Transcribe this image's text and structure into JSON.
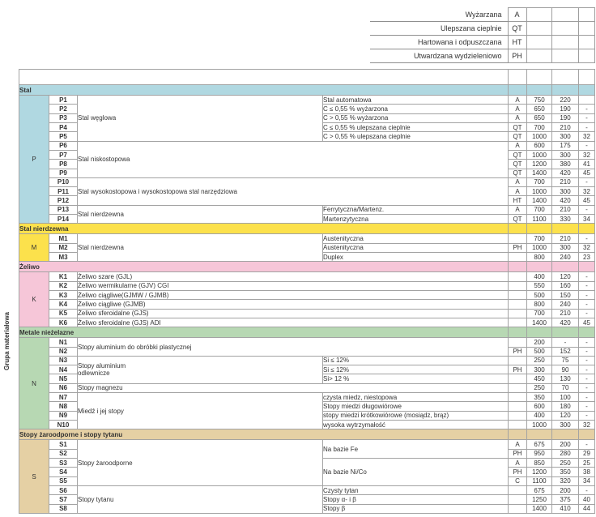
{
  "axis_label": "Grupa materiałowa",
  "legend": {
    "rows": [
      {
        "label": "Wyżarzana",
        "code": "A"
      },
      {
        "label": "Ulepszana cieplnie",
        "code": "QT"
      },
      {
        "label": "Hartowana i odpuszczana",
        "code": "HT"
      },
      {
        "label": "Utwardzana wydzieleniowo",
        "code": "PH"
      }
    ]
  },
  "sections": [
    {
      "letter": "P",
      "header": "Stal",
      "color": "#b0d8e1",
      "rows": [
        {
          "id": "P1",
          "a": "Stal węglowa",
          "span": 5,
          "b": "Stal automatowa",
          "t": "A",
          "v1": "750",
          "v2": "220",
          "v3": ""
        },
        {
          "id": "P2",
          "b": "C ≤ 0,55 % wyżarzona",
          "t": "A",
          "v1": "650",
          "v2": "190",
          "v3": "-"
        },
        {
          "id": "P3",
          "b": "C > 0,55 % wyżarzona",
          "t": "A",
          "v1": "650",
          "v2": "190",
          "v3": "-"
        },
        {
          "id": "P4",
          "b": "C ≤ 0,55 % ulepszana cieplnie",
          "t": "QT",
          "v1": "700",
          "v2": "210",
          "v3": "-"
        },
        {
          "id": "P5",
          "b": "C > 0,55 % ulepszana cieplnie",
          "t": "QT",
          "v1": "1000",
          "v2": "300",
          "v3": "32"
        },
        {
          "id": "P6",
          "ab": "Stal niskostopowa",
          "span": 4,
          "t": "A",
          "v1": "600",
          "v2": "175",
          "v3": "-"
        },
        {
          "id": "P7",
          "t": "QT",
          "v1": "1000",
          "v2": "300",
          "v3": "32"
        },
        {
          "id": "P8",
          "t": "QT",
          "v1": "1200",
          "v2": "380",
          "v3": "41"
        },
        {
          "id": "P9",
          "t": "QT",
          "v1": "1400",
          "v2": "420",
          "v3": "45"
        },
        {
          "id": "P10",
          "ab": "Stal wysokostopowa i wysokostopowa stal narzędziowa",
          "span": 3,
          "t": "A",
          "v1": "700",
          "v2": "210",
          "v3": "-"
        },
        {
          "id": "P11",
          "t": "A",
          "v1": "1000",
          "v2": "300",
          "v3": "32"
        },
        {
          "id": "P12",
          "t": "HT",
          "v1": "1400",
          "v2": "420",
          "v3": "45"
        },
        {
          "id": "P13",
          "a": "Stal nierdzewna",
          "span": 2,
          "b": "Ferrytyczna/Martenz.",
          "t": "A",
          "v1": "700",
          "v2": "210",
          "v3": "-"
        },
        {
          "id": "P14",
          "b": "Martenzytyczna",
          "t": "QT",
          "v1": "1100",
          "v2": "330",
          "v3": "34"
        }
      ]
    },
    {
      "letter": "M",
      "header": "Stal nierdzewna",
      "color": "#fce14c",
      "rows": [
        {
          "id": "M1",
          "a": "Stal nierdzewna",
          "span": 3,
          "b": "Austenityczna",
          "t": "",
          "v1": "700",
          "v2": "210",
          "v3": "-"
        },
        {
          "id": "M2",
          "b": "Austenityczna",
          "t": "PH",
          "v1": "1000",
          "v2": "300",
          "v3": "32"
        },
        {
          "id": "M3",
          "b": "Duplex",
          "t": "",
          "v1": "800",
          "v2": "240",
          "v3": "23"
        }
      ]
    },
    {
      "letter": "K",
      "header": "Żeliwo",
      "color": "#f6c6d8",
      "rows": [
        {
          "id": "K1",
          "ab": "Żeliwo szare (GJL)",
          "t": "",
          "v1": "400",
          "v2": "120",
          "v3": "-"
        },
        {
          "id": "K2",
          "ab": "Żeliwo wermikularne (GJV) CGI",
          "t": "",
          "v1": "550",
          "v2": "160",
          "v3": "-"
        },
        {
          "id": "K3",
          "ab": "Żeliwo ciągliwe(GJMW / GJMB)",
          "t": "",
          "v1": "500",
          "v2": "150",
          "v3": "-"
        },
        {
          "id": "K4",
          "ab": "Żeliwo ciągliwe (GJMB)",
          "t": "",
          "v1": "800",
          "v2": "240",
          "v3": "-"
        },
        {
          "id": "K5",
          "ab": "Żeliwo sferoidalne (GJS)",
          "t": "",
          "v1": "700",
          "v2": "210",
          "v3": "-"
        },
        {
          "id": "K6",
          "ab": "Żeliwo sferoidalne (GJS) ADI",
          "t": "",
          "v1": "1400",
          "v2": "420",
          "v3": "45"
        }
      ]
    },
    {
      "letter": "N",
      "header": "Metale nieżelazne",
      "color": "#b7d8b3",
      "rows": [
        {
          "id": "N1",
          "ab": "Stopy aluminium do obróbki plastycznej",
          "span": 2,
          "t": "",
          "v1": "200",
          "v2": "-",
          "v3": "-"
        },
        {
          "id": "N2",
          "t": "PH",
          "v1": "500",
          "v2": "152",
          "v3": "-"
        },
        {
          "id": "N3",
          "a": "Stopy aluminium\nodlewnicze",
          "span": 3,
          "b": "Si ≤ 12%",
          "t": "",
          "v1": "250",
          "v2": "75",
          "v3": "-"
        },
        {
          "id": "N4",
          "b": "Si ≤ 12%",
          "t": "PH",
          "v1": "300",
          "v2": "90",
          "v3": "-"
        },
        {
          "id": "N5",
          "b": "Si> 12 %",
          "t": "",
          "v1": "450",
          "v2": "130",
          "v3": "-"
        },
        {
          "id": "N6",
          "ab": "Stopy magnezu",
          "t": "",
          "v1": "250",
          "v2": "70",
          "v3": "-"
        },
        {
          "id": "N7",
          "a": "Miedź i jej stopy",
          "span": 4,
          "b": "czysta miedz, niestopowa",
          "t": "",
          "v1": "350",
          "v2": "100",
          "v3": "-"
        },
        {
          "id": "N8",
          "b": "Stopy miedzi długowiórowe",
          "t": "",
          "v1": "600",
          "v2": "180",
          "v3": "-"
        },
        {
          "id": "N9",
          "b": "stopy miedzi krótkowiórowe (mosiądz, brąz)",
          "t": "",
          "v1": "400",
          "v2": "120",
          "v3": "-"
        },
        {
          "id": "N10",
          "b": "wysoka wytrzymałość",
          "t": "",
          "v1": "1000",
          "v2": "300",
          "v3": "32"
        }
      ]
    },
    {
      "letter": "S",
      "header": "Stopy żaroodporne i stopy tytanu",
      "color": "#e5d0a4",
      "rows": [
        {
          "id": "S1",
          "a": "Stopy żaroodporne",
          "span": 5,
          "b": "Na bazie Fe",
          "bspan": 2,
          "t": "A",
          "v1": "675",
          "v2": "200",
          "v3": "-"
        },
        {
          "id": "S2",
          "t": "PH",
          "v1": "950",
          "v2": "280",
          "v3": "29"
        },
        {
          "id": "S3",
          "b": "Na bazie Ni/Co",
          "bspan": 3,
          "t": "A",
          "v1": "850",
          "v2": "250",
          "v3": "25"
        },
        {
          "id": "S4",
          "t": "PH",
          "v1": "1200",
          "v2": "350",
          "v3": "38"
        },
        {
          "id": "S5",
          "t": "C",
          "v1": "1100",
          "v2": "320",
          "v3": "34"
        },
        {
          "id": "S6",
          "a": "Stopy tytanu",
          "span": 3,
          "b": "Czysty tytan",
          "t": "",
          "v1": "675",
          "v2": "200",
          "v3": "-"
        },
        {
          "id": "S7",
          "b": "Stopy α- i β",
          "t": "",
          "v1": "1250",
          "v2": "375",
          "v3": "40"
        },
        {
          "id": "S8",
          "b": "Stopy β",
          "t": "",
          "v1": "1400",
          "v2": "410",
          "v3": "44"
        }
      ]
    }
  ]
}
